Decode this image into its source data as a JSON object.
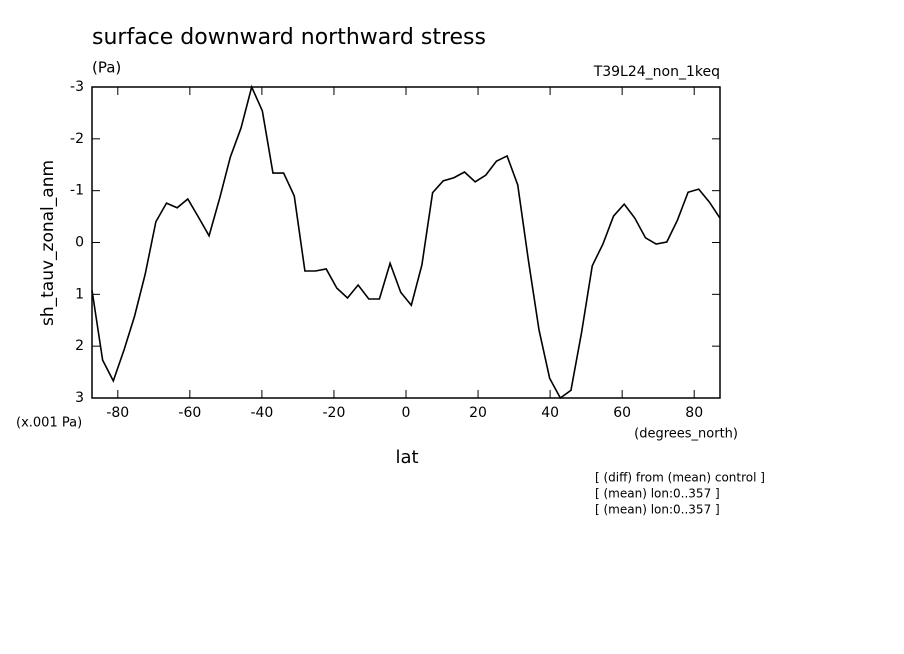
{
  "chart_data": {
    "type": "line",
    "title": "surface downward northward stress",
    "subtitle": "(Pa)",
    "run_label": "T39L24_non_1keq",
    "y_label": "sh_tauv_zonal_anm",
    "y_unit": "(x.001 Pa)",
    "x_unit": "(degrees_north)",
    "x_label": "lat",
    "notes": [
      "[ (diff) from (mean) control ]",
      "[ (mean) lon:0..357 ]",
      "[ (mean) lon:0..357 ]"
    ],
    "color": "#000000",
    "xlim": [
      -87.16,
      87.16
    ],
    "ylim": [
      3,
      -3
    ],
    "xticks": [
      -80,
      -60,
      -40,
      -20,
      0,
      20,
      40,
      60,
      80
    ],
    "yticks": [
      -3,
      -2,
      -1,
      0,
      1,
      2,
      3
    ],
    "x": [
      -87.16,
      -84.21,
      -81.25,
      -78.3,
      -75.34,
      -72.39,
      -69.43,
      -66.48,
      -63.52,
      -60.57,
      -57.61,
      -54.66,
      -51.7,
      -48.75,
      -45.79,
      -42.84,
      -39.88,
      -36.93,
      -33.97,
      -31.02,
      -28.06,
      -25.11,
      -22.15,
      -19.2,
      -16.24,
      -13.29,
      -10.33,
      -7.38,
      -4.42,
      -1.47,
      1.47,
      4.42,
      7.38,
      10.33,
      13.29,
      16.24,
      19.2,
      22.15,
      25.11,
      28.06,
      31.02,
      33.97,
      36.93,
      39.88,
      42.84,
      45.79,
      48.75,
      51.7,
      54.66,
      57.61,
      60.57,
      63.52,
      66.48,
      69.43,
      72.39,
      75.34,
      78.3,
      81.25,
      84.21,
      87.16
    ],
    "values": [
      0.92,
      2.27,
      2.67,
      2.08,
      1.42,
      0.61,
      -0.4,
      -0.76,
      -0.67,
      -0.84,
      -0.49,
      -0.13,
      -0.86,
      -1.65,
      -2.21,
      -3.0,
      -2.54,
      -1.34,
      -1.34,
      -0.9,
      0.55,
      0.55,
      0.51,
      0.88,
      1.07,
      0.82,
      1.09,
      1.09,
      0.4,
      0.96,
      1.21,
      0.43,
      -0.96,
      -1.19,
      -1.25,
      -1.36,
      -1.17,
      -1.3,
      -1.57,
      -1.67,
      -1.11,
      0.34,
      1.69,
      2.62,
      3.0,
      2.85,
      1.73,
      0.45,
      0.03,
      -0.51,
      -0.74,
      -0.47,
      -0.09,
      0.03,
      -0.01,
      -0.43,
      -0.97,
      -1.03,
      -0.78,
      -0.47
    ]
  }
}
